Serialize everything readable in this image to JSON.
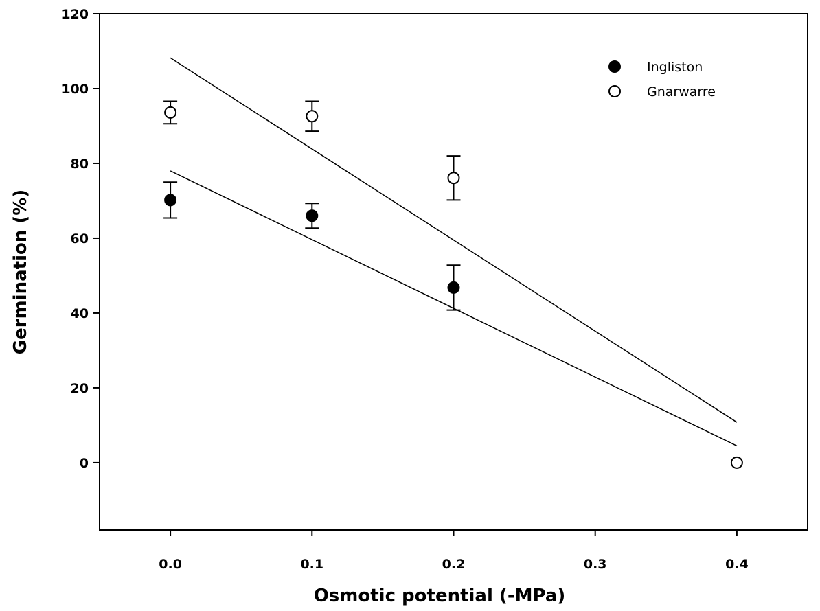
{
  "chart_data": {
    "type": "scatter",
    "title": "",
    "xlabel": "Osmotic potential (-MPa)",
    "ylabel": "Germination (%)",
    "xlim": [
      -0.05,
      0.45
    ],
    "ylim": [
      -18,
      120
    ],
    "x_ticks": [
      0.0,
      0.1,
      0.2,
      0.3,
      0.4
    ],
    "x_tick_labels": [
      "0.0",
      "0.1",
      "0.2",
      "0.3",
      "0.4"
    ],
    "y_ticks": [
      0,
      20,
      40,
      60,
      80,
      100,
      120
    ],
    "y_tick_labels": [
      "0",
      "20",
      "40",
      "60",
      "80",
      "100",
      "120"
    ],
    "grid": false,
    "legend_position": "top-right",
    "series": [
      {
        "name": "Ingliston",
        "marker": "filled-circle",
        "color": "#000000",
        "points": [
          {
            "x": 0.0,
            "y": 70.2,
            "err": 4.8
          },
          {
            "x": 0.1,
            "y": 66.0,
            "err": 3.3
          },
          {
            "x": 0.2,
            "y": 46.8,
            "err": 6.0
          }
        ],
        "fit_line": {
          "x": [
            0.0,
            0.4
          ],
          "y": [
            78.0,
            4.5
          ]
        }
      },
      {
        "name": "Gnarwarre",
        "marker": "open-circle",
        "color": "#000000",
        "points": [
          {
            "x": 0.0,
            "y": 93.6,
            "err": 3.0
          },
          {
            "x": 0.1,
            "y": 92.6,
            "err": 4.0
          },
          {
            "x": 0.2,
            "y": 76.1,
            "err": 5.9
          },
          {
            "x": 0.4,
            "y": 0.0,
            "err": 0
          }
        ],
        "fit_line": {
          "x": [
            0.0,
            0.4
          ],
          "y": [
            108.2,
            10.8
          ]
        }
      }
    ]
  }
}
